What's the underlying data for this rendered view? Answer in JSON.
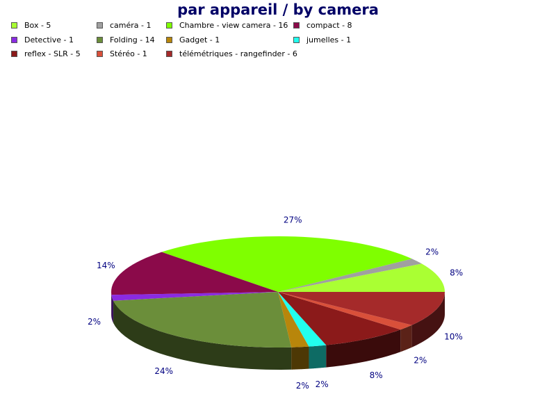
{
  "chart_data": {
    "type": "pie",
    "title": "par appareil / by camera",
    "legend_placement": "top-left",
    "three_d": true,
    "slices": [
      {
        "legend": "Box - 5",
        "value": 5,
        "percent_label": "8%",
        "color": "#aaff33"
      },
      {
        "legend": "caméra - 1",
        "value": 1,
        "percent_label": "2%",
        "color": "#a0a0a0"
      },
      {
        "legend": "Chambre  - view camera - 16",
        "value": 16,
        "percent_label": "27%",
        "color": "#7fff00"
      },
      {
        "legend": "compact - 8",
        "value": 8,
        "percent_label": "14%",
        "color": "#8b0a4a"
      },
      {
        "legend": "Detective - 1",
        "value": 1,
        "percent_label": "2%",
        "color": "#8a2be2"
      },
      {
        "legend": "Folding - 14",
        "value": 14,
        "percent_label": "24%",
        "color": "#6b8e3a"
      },
      {
        "legend": "Gadget - 1",
        "value": 1,
        "percent_label": "2%",
        "color": "#b8860b"
      },
      {
        "legend": "jumelles - 1",
        "value": 1,
        "percent_label": "2%",
        "color": "#22ffee"
      },
      {
        "legend": "reflex -  SLR - 5",
        "value": 5,
        "percent_label": "8%",
        "color": "#8b1a1a"
      },
      {
        "legend": "Stéréo - 1",
        "value": 1,
        "percent_label": "2%",
        "color": "#d9503a"
      },
      {
        "legend": "télémétriques - rangefinder - 6",
        "value": 6,
        "percent_label": "10%",
        "color": "#a52a2a"
      }
    ]
  }
}
